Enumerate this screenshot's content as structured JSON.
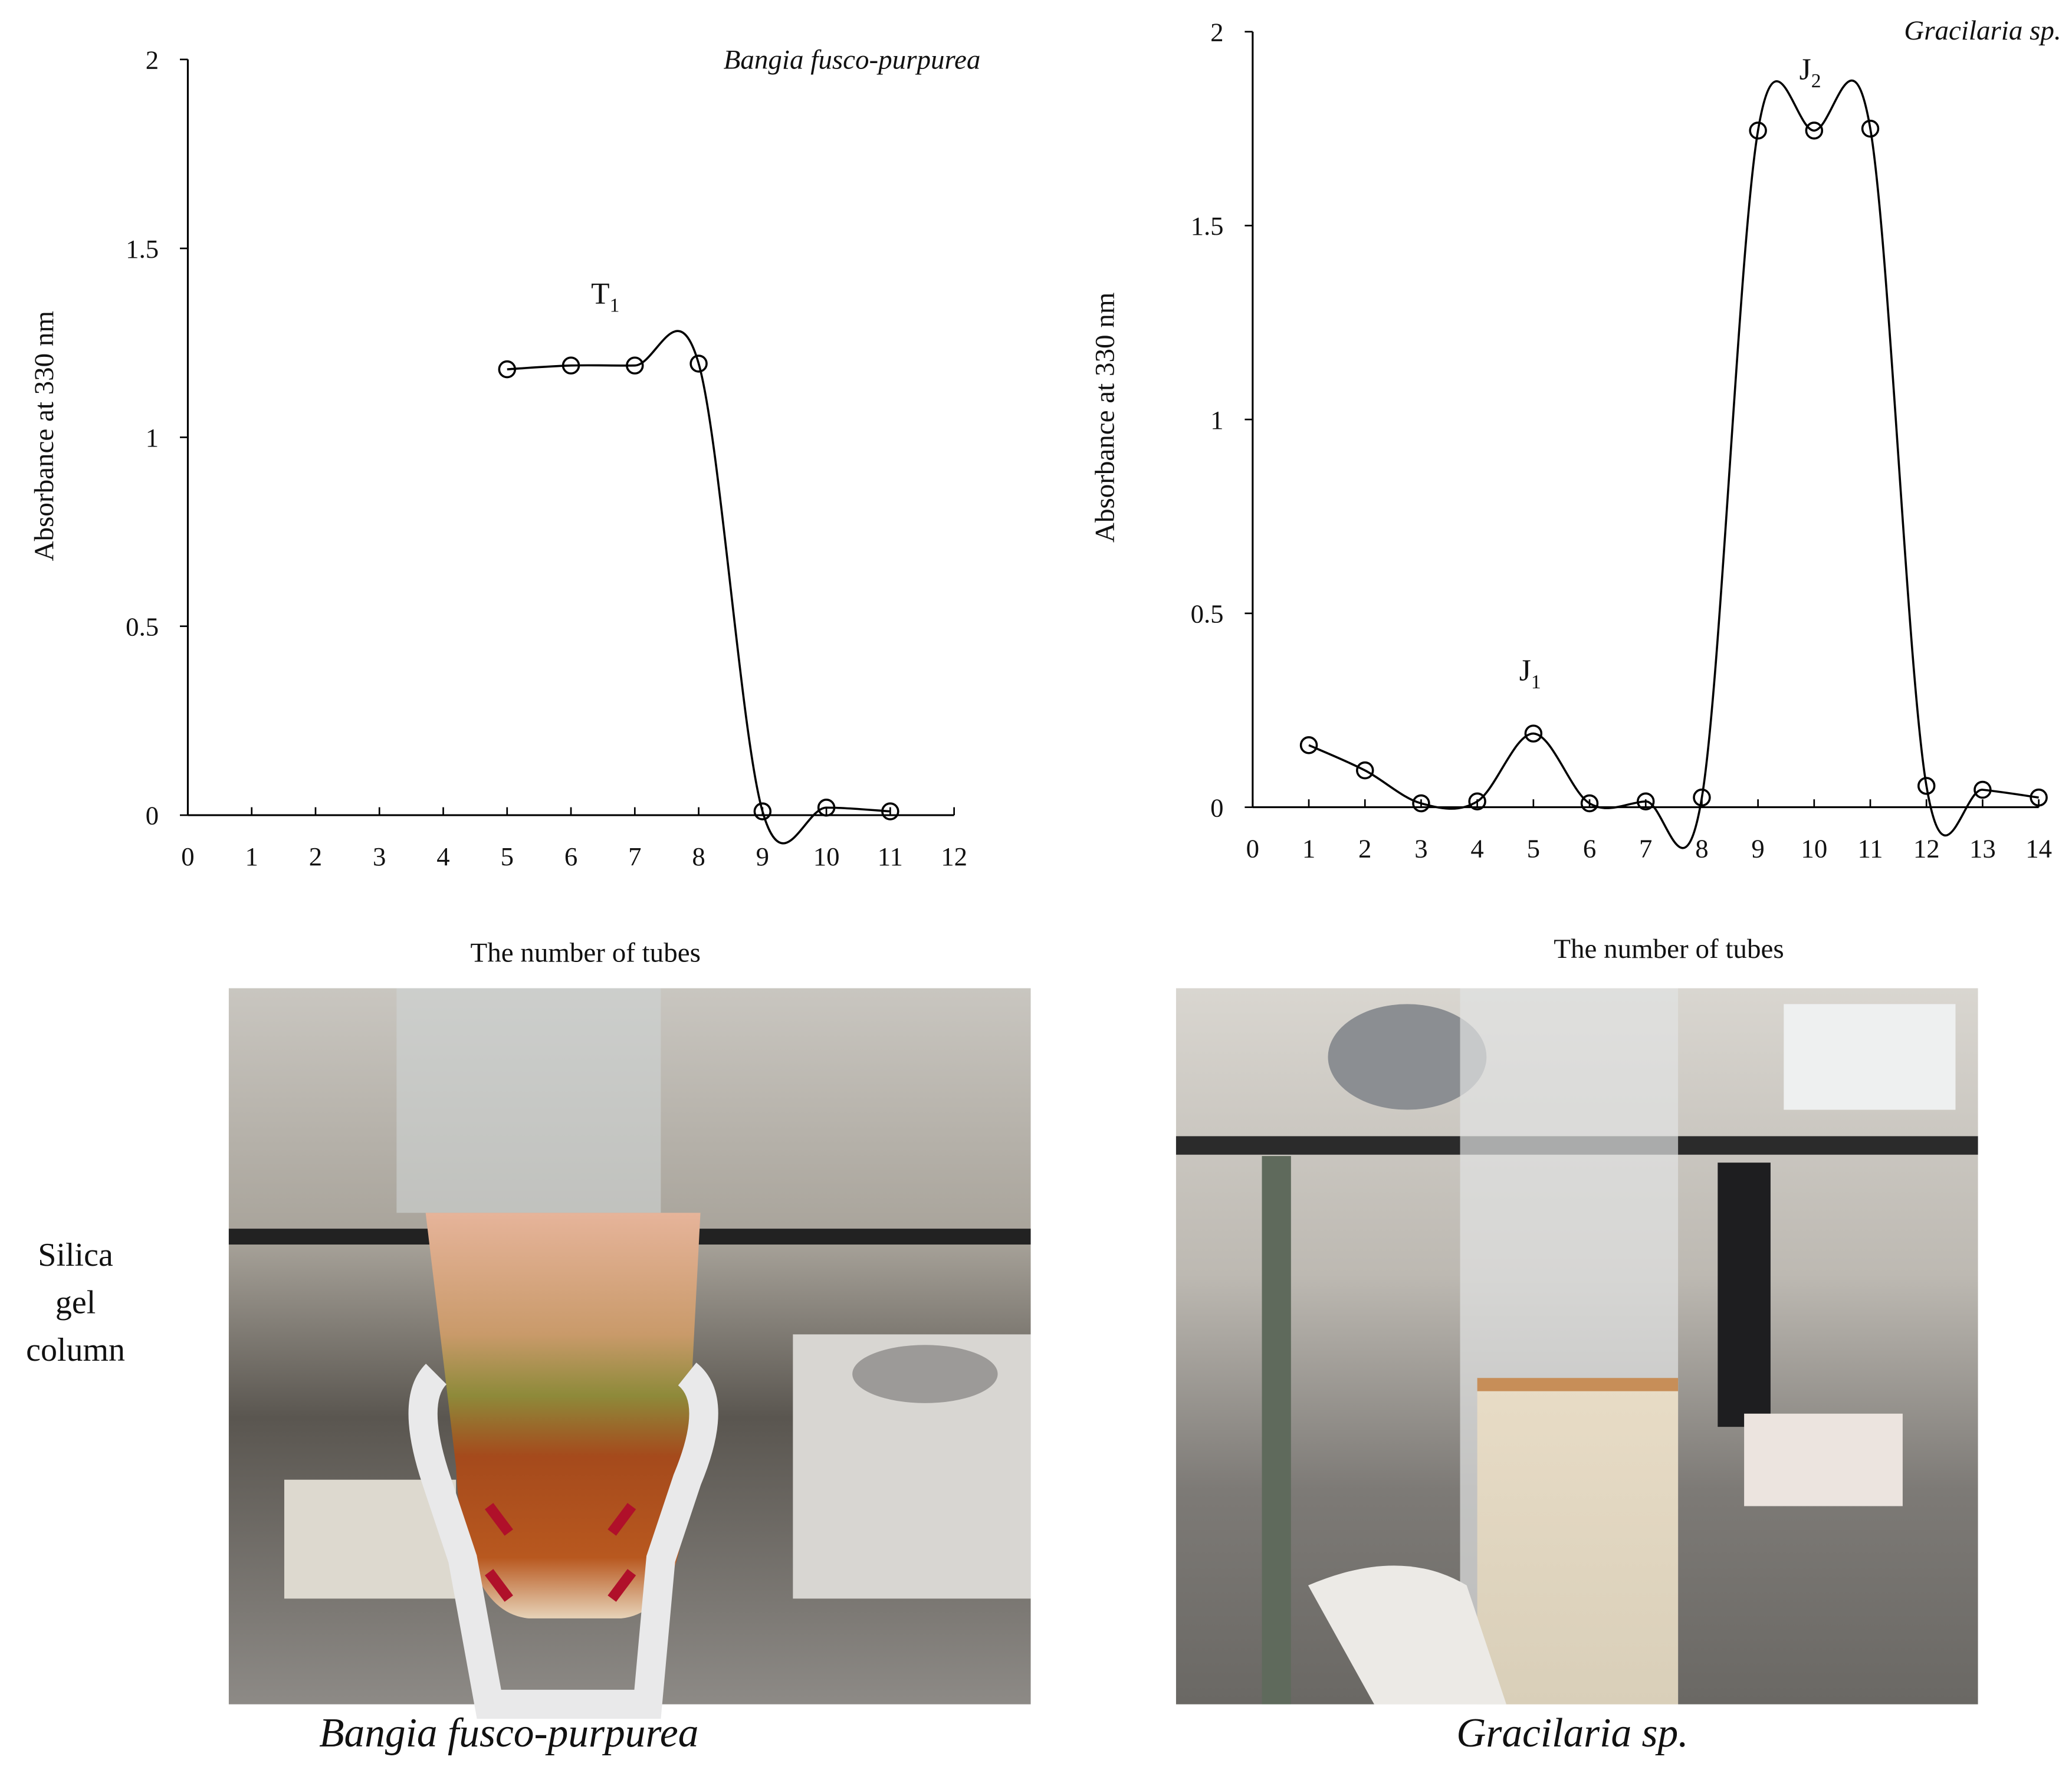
{
  "chart_data": [
    {
      "type": "line",
      "title": "Bangia fusco-purpurea",
      "x_label": "The number of tubes",
      "y_label": "Absorbance at 330 nm",
      "x": [
        5,
        6,
        7,
        8,
        9,
        10,
        11
      ],
      "values": [
        1.18,
        1.19,
        1.19,
        1.195,
        0.01,
        0.02,
        0.01
      ],
      "color": "#000000",
      "marker": "circle",
      "xlim": [
        0,
        12
      ],
      "xticks": [
        0,
        1,
        2,
        3,
        4,
        5,
        6,
        7,
        8,
        9,
        10,
        11,
        12
      ],
      "ylim": [
        0,
        2
      ],
      "yticks": [
        0,
        0.5,
        1,
        1.5,
        2
      ],
      "annotations": [
        {
          "text": "T",
          "subscript": "1"
        }
      ]
    },
    {
      "type": "line",
      "title": "Gracilaria sp.",
      "x_label": "The number of tubes",
      "y_label": "Absorbance at 330 nm",
      "x": [
        1,
        2,
        3,
        4,
        5,
        6,
        7,
        8,
        9,
        10,
        11,
        12,
        13,
        14
      ],
      "values": [
        0.16,
        0.095,
        0.01,
        0.015,
        0.19,
        0.01,
        0.015,
        0.025,
        1.745,
        1.745,
        1.75,
        0.055,
        0.045,
        0.025
      ],
      "color": "#000000",
      "marker": "circle",
      "xlim": [
        0,
        14
      ],
      "xticks": [
        0,
        1,
        2,
        3,
        4,
        5,
        6,
        7,
        8,
        9,
        10,
        11,
        12,
        13,
        14
      ],
      "ylim": [
        0,
        2
      ],
      "yticks": [
        0,
        0.5,
        1,
        1.5,
        2
      ],
      "annotations": [
        {
          "text": "J",
          "subscript": "1"
        },
        {
          "text": "J",
          "subscript": "2"
        }
      ]
    }
  ],
  "photos": [
    {
      "caption": "Bangia fusco-purpurea"
    },
    {
      "caption": "Gracilaria sp."
    }
  ],
  "row_label": [
    "Silica",
    "gel",
    "column"
  ]
}
